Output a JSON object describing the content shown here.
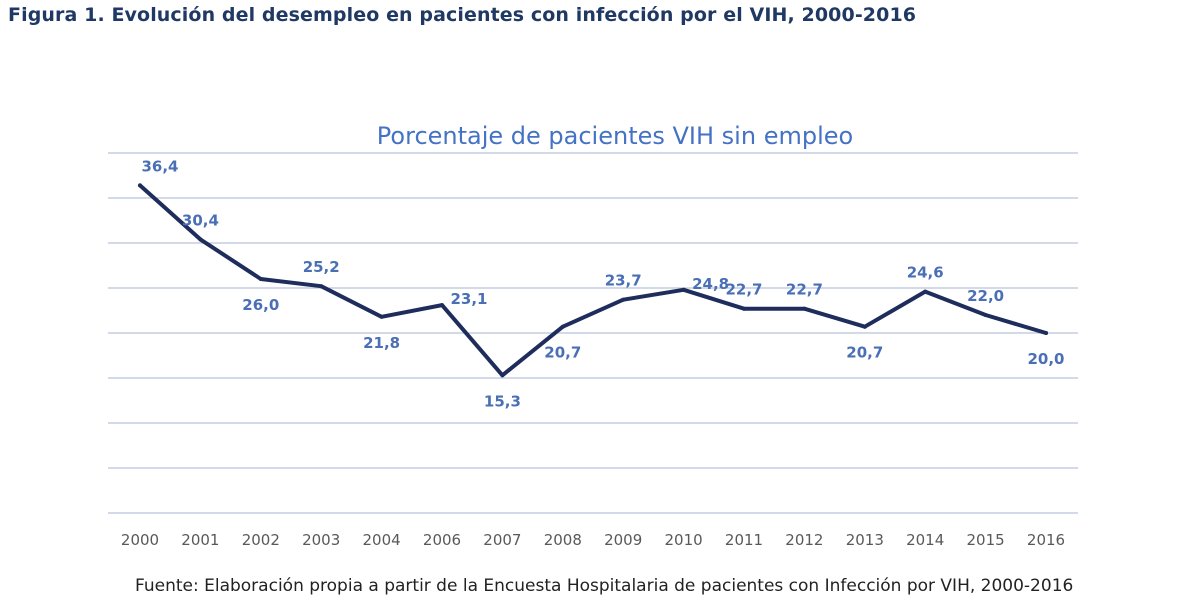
{
  "figure_title": "Figura 1. Evolución del desempleo en pacientes con infección por el VIH, 2000-2016",
  "source_note": "Fuente: Elaboración propia a partir de la Encuesta Hospitalaria de pacientes con Infección por VIH, 2000-2016",
  "colors": {
    "line": "#1f2d5c",
    "label": "#4a6fb5",
    "title": "#4472c4",
    "figure_title": "#1f3864",
    "grid": "#b8c4dc",
    "axis_text": "#595959"
  },
  "chart_data": {
    "type": "line",
    "title": "Porcentaje de pacientes VIH sin empleo",
    "categories": [
      "2000",
      "2001",
      "2002",
      "2003",
      "2004",
      "2006",
      "2007",
      "2008",
      "2009",
      "2010",
      "2011",
      "2012",
      "2013",
      "2014",
      "2015",
      "2016"
    ],
    "series": [
      {
        "values": [
          36.4,
          30.4,
          26.0,
          25.2,
          21.8,
          23.1,
          15.3,
          20.7,
          23.7,
          24.8,
          22.7,
          22.7,
          20.7,
          24.6,
          22.0,
          20.0
        ],
        "labels": [
          "36,4",
          "30,4",
          "26,0",
          "25,2",
          "21,8",
          "23,1",
          "15,3",
          "20,7",
          "23,7",
          "24,8",
          "22,7",
          "22,7",
          "20,7",
          "24,6",
          "22,0",
          "20,0"
        ],
        "label_positions": [
          "above",
          "above",
          "below",
          "above",
          "below",
          "right",
          "below",
          "below",
          "above",
          "right",
          "above",
          "above",
          "below",
          "above",
          "above",
          "below"
        ]
      }
    ],
    "ylim": [
      0,
      40
    ],
    "gridlines": true,
    "y_tick_labels_shown": false,
    "xlabel": "",
    "ylabel": ""
  }
}
